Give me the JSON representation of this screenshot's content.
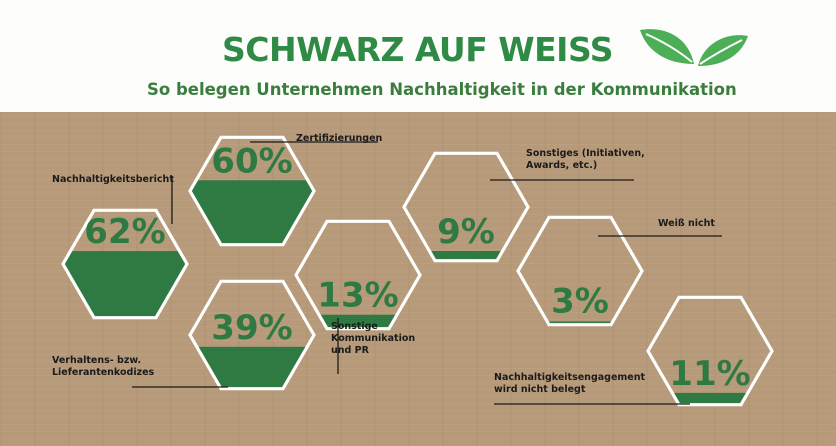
{
  "header": {
    "title": "SCHWARZ AUF WEISS",
    "subtitle": "So belegen Unternehmen Nachhaltigkeit in der Kommunikation"
  },
  "colors": {
    "green_dark": "#2f7a43",
    "green_title": "#2f8a45",
    "leaf": "#4cae56",
    "cardboard": "#b69a7a",
    "hex_outline": "#ffffff",
    "label_text": "#1b1b1b"
  },
  "icons": {
    "logo": "leaf-icon"
  },
  "chart_data": {
    "type": "bar",
    "categories": [
      "Nachhaltigkeitsbericht",
      "Zertifizierungen",
      "Verhaltens- bzw. Lieferantenkodizes",
      "Sonstige Kommunikation und PR",
      "Sonstiges (Initiativen, Awards, etc.)",
      "Weiß nicht",
      "Nachhaltigkeitsengagement wird nicht belegt"
    ],
    "values": [
      62,
      60,
      39,
      13,
      9,
      3,
      11
    ],
    "value_labels": [
      "62%",
      "60%",
      "39%",
      "13%",
      "9%",
      "3%",
      "11%"
    ],
    "callouts": [
      "Nachhaltigkeitsbericht",
      "Zertifizierungen",
      "Verhaltens- bzw.\nLieferantenkodizes",
      "Sonstige\nKommunikation\nund PR",
      "Sonstiges (Initiativen,\nAwards, etc.)",
      "Weiß nicht",
      "Nachhaltigkeitsengagement\nwird nicht belegt"
    ],
    "unit": "%",
    "ylim": [
      0,
      100
    ]
  }
}
